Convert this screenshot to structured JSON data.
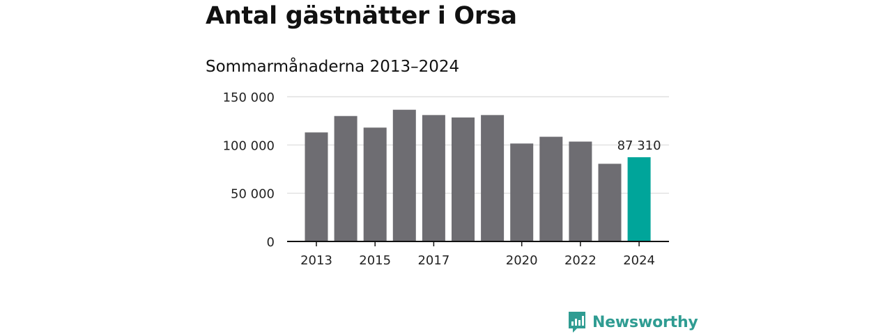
{
  "title": "Antal gästnätter i Orsa",
  "subtitle": "Sommarmånaderna 2013–2024",
  "brand": {
    "name": "Newsworthy",
    "icon": "newsworthy-logo-icon",
    "color": "#2f9c92"
  },
  "colors": {
    "bar": "#6e6d72",
    "highlight": "#00a59a",
    "grid": "#d9d9d9",
    "axis": "#111111"
  },
  "chart_data": {
    "type": "bar",
    "categories": [
      "2013",
      "2014",
      "2015",
      "2016",
      "2017",
      "2018",
      "2019",
      "2020",
      "2021",
      "2022",
      "2023",
      "2024"
    ],
    "values": [
      113000,
      130000,
      118000,
      136500,
      131000,
      128500,
      131000,
      101500,
      108500,
      103500,
      80500,
      87310
    ],
    "x_tick_labels": [
      "2013",
      "2015",
      "2017",
      "2020",
      "2022",
      "2024"
    ],
    "y_ticks": [
      0,
      50000,
      100000,
      150000
    ],
    "y_tick_labels": [
      "0",
      "50 000",
      "100 000",
      "150 000"
    ],
    "ylim": [
      0,
      150000
    ],
    "grid": true,
    "highlight_category": "2024",
    "data_labels": [
      {
        "category": "2024",
        "text": "87 310"
      }
    ],
    "title": "Antal gästnätter i Orsa",
    "subtitle": "Sommarmånaderna 2013–2024",
    "xlabel": "",
    "ylabel": ""
  }
}
